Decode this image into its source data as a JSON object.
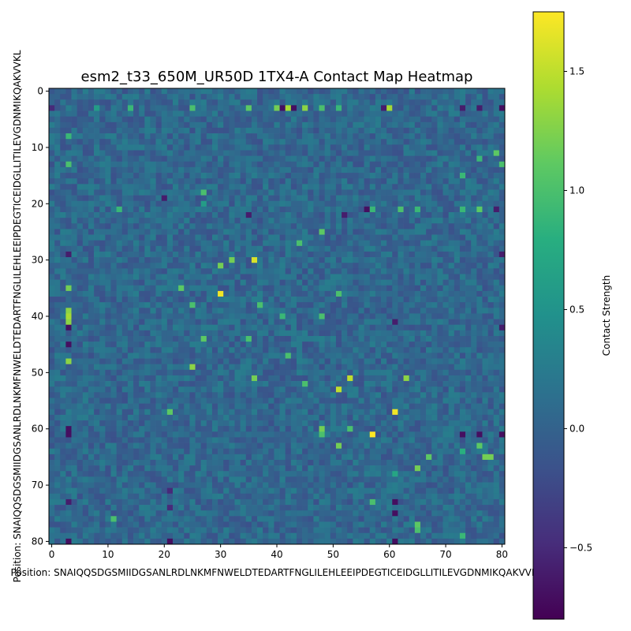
{
  "chart_data": {
    "type": "heatmap",
    "title": "esm2_t33_650M_UR50D 1TX4-A Contact Map Heatmap",
    "xlabel": "Position: SNAIQQSDGSMIIDGSANLRDLNKMFNWELDTEDARTFNGLILEHLEEIPDEGTICEIDGLLITILEVGDNMIKQAKVVKL",
    "ylabel": "Position: SNAIQQSDGSMIIDGSANLRDLNKMFNWELDTEDARTFNGLILEHLEEIPDEGTICEIDGLLITILEVGDNMIKQAKVVKL",
    "sequence": "SNAIQQSDGSMIIDGSANLRDLNKMFNWELDTEDARTFNGLILEHLEEIPDEGTICEIDGLLITILEVGDNMIKQAKVVKL",
    "n_positions": 81,
    "x_ticks": [
      "0",
      "10",
      "20",
      "30",
      "40",
      "50",
      "60",
      "70",
      "80"
    ],
    "y_ticks": [
      "0",
      "10",
      "20",
      "30",
      "40",
      "50",
      "60",
      "70",
      "80"
    ],
    "colormap": "viridis",
    "colorbar_label": "Contact Strength",
    "colorbar_ticks": [
      "1.5",
      "1.0",
      "0.5",
      "0.0",
      "−0.5"
    ],
    "value_range": [
      -0.8,
      1.75
    ],
    "background_mean": 0.05,
    "highlights": [
      {
        "i": 3,
        "j": 0,
        "v": -0.5
      },
      {
        "i": 3,
        "j": 8,
        "v": 0.6
      },
      {
        "i": 3,
        "j": 14,
        "v": 0.9
      },
      {
        "i": 3,
        "j": 35,
        "v": 1.1
      },
      {
        "i": 3,
        "j": 40,
        "v": 1.2
      },
      {
        "i": 3,
        "j": 41,
        "v": -0.7
      },
      {
        "i": 3,
        "j": 42,
        "v": 1.4
      },
      {
        "i": 3,
        "j": 43,
        "v": -0.7
      },
      {
        "i": 3,
        "j": 45,
        "v": 1.3
      },
      {
        "i": 3,
        "j": 48,
        "v": 1.0
      },
      {
        "i": 3,
        "j": 51,
        "v": 0.9
      },
      {
        "i": 3,
        "j": 59,
        "v": -0.6
      },
      {
        "i": 3,
        "j": 60,
        "v": 1.4
      },
      {
        "i": 3,
        "j": 80,
        "v": -0.7
      },
      {
        "i": 21,
        "j": 12,
        "v": 0.9
      },
      {
        "i": 21,
        "j": 57,
        "v": 0.9
      },
      {
        "i": 21,
        "j": 62,
        "v": 1.0
      },
      {
        "i": 21,
        "j": 65,
        "v": 0.9
      },
      {
        "i": 21,
        "j": 73,
        "v": 0.9
      },
      {
        "i": 21,
        "j": 76,
        "v": 1.1
      },
      {
        "i": 21,
        "j": 56,
        "v": -0.7
      },
      {
        "i": 21,
        "j": 79,
        "v": -0.6
      },
      {
        "i": 22,
        "j": 35,
        "v": -0.6
      },
      {
        "i": 30,
        "j": 32,
        "v": 1.2
      },
      {
        "i": 30,
        "j": 36,
        "v": 1.6
      },
      {
        "i": 31,
        "j": 30,
        "v": 1.2
      },
      {
        "i": 36,
        "j": 30,
        "v": 1.7
      },
      {
        "i": 35,
        "j": 23,
        "v": 1.1
      },
      {
        "i": 38,
        "j": 25,
        "v": 1.0
      },
      {
        "i": 38,
        "j": 37,
        "v": 1.0
      },
      {
        "i": 44,
        "j": 27,
        "v": 1.1
      },
      {
        "i": 44,
        "j": 35,
        "v": 1.0
      },
      {
        "i": 49,
        "j": 25,
        "v": 1.3
      },
      {
        "i": 51,
        "j": 36,
        "v": 1.2
      },
      {
        "i": 51,
        "j": 63,
        "v": 1.3
      },
      {
        "i": 52,
        "j": 45,
        "v": 1.0
      },
      {
        "i": 53,
        "j": 51,
        "v": 1.5
      },
      {
        "i": 51,
        "j": 53,
        "v": 1.5
      },
      {
        "i": 57,
        "j": 61,
        "v": 1.7
      },
      {
        "i": 61,
        "j": 57,
        "v": 1.75
      },
      {
        "i": 61,
        "j": 48,
        "v": 1.0
      },
      {
        "i": 61,
        "j": 73,
        "v": -0.7
      },
      {
        "i": 61,
        "j": 76,
        "v": -0.7
      },
      {
        "i": 61,
        "j": 80,
        "v": -0.7
      },
      {
        "i": 61,
        "j": 3,
        "v": -0.7
      },
      {
        "i": 63,
        "j": 51,
        "v": 1.2
      },
      {
        "i": 65,
        "j": 67,
        "v": 1.1
      },
      {
        "i": 65,
        "j": 77,
        "v": 1.2
      },
      {
        "i": 65,
        "j": 78,
        "v": 1.2
      },
      {
        "i": 67,
        "j": 65,
        "v": 1.2
      },
      {
        "i": 73,
        "j": 57,
        "v": 1.0
      },
      {
        "i": 73,
        "j": 61,
        "v": -0.7
      },
      {
        "i": 75,
        "j": 61,
        "v": -0.7
      },
      {
        "i": 77,
        "j": 65,
        "v": 1.1
      },
      {
        "i": 78,
        "j": 65,
        "v": 1.0
      },
      {
        "i": 79,
        "j": 73,
        "v": 0.9
      },
      {
        "i": 80,
        "j": 3,
        "v": -0.7
      },
      {
        "i": 80,
        "j": 21,
        "v": -0.7
      },
      {
        "i": 80,
        "j": 61,
        "v": -0.7
      },
      {
        "i": 42,
        "j": 3,
        "v": -0.7
      },
      {
        "i": 45,
        "j": 3,
        "v": -0.7
      },
      {
        "i": 29,
        "j": 3,
        "v": -0.6
      },
      {
        "i": 40,
        "j": 3,
        "v": 1.4
      },
      {
        "i": 39,
        "j": 3,
        "v": 1.3
      },
      {
        "i": 41,
        "j": 3,
        "v": 1.3
      },
      {
        "i": 48,
        "j": 3,
        "v": 1.3
      },
      {
        "i": 35,
        "j": 3,
        "v": 1.2
      },
      {
        "i": 13,
        "j": 3,
        "v": 1.0
      },
      {
        "i": 8,
        "j": 3,
        "v": 0.9
      },
      {
        "i": 3,
        "j": 25,
        "v": 1.0
      },
      {
        "i": 3,
        "j": 73,
        "v": -0.6
      },
      {
        "i": 3,
        "j": 76,
        "v": -0.6
      },
      {
        "i": 19,
        "j": 20,
        "v": -0.6
      },
      {
        "i": 20,
        "j": 27,
        "v": 0.6
      },
      {
        "i": 18,
        "j": 27,
        "v": 1.0
      },
      {
        "i": 27,
        "j": 44,
        "v": 1.0
      },
      {
        "i": 25,
        "j": 48,
        "v": 1.1
      },
      {
        "i": 36,
        "j": 51,
        "v": 1.0
      },
      {
        "i": 11,
        "j": 79,
        "v": 1.1
      },
      {
        "i": 12,
        "j": 76,
        "v": 0.9
      },
      {
        "i": 13,
        "j": 80,
        "v": 1.0
      },
      {
        "i": 15,
        "j": 73,
        "v": 0.9
      },
      {
        "i": 29,
        "j": 80,
        "v": -0.6
      },
      {
        "i": 42,
        "j": 80,
        "v": -0.6
      },
      {
        "i": 41,
        "j": 61,
        "v": -0.6
      },
      {
        "i": 40,
        "j": 41,
        "v": 0.9
      },
      {
        "i": 40,
        "j": 48,
        "v": 1.0
      },
      {
        "i": 47,
        "j": 42,
        "v": 1.0
      },
      {
        "i": 22,
        "j": 52,
        "v": -0.6
      },
      {
        "i": 57,
        "j": 21,
        "v": 1.1
      },
      {
        "i": 63,
        "j": 76,
        "v": 1.1
      },
      {
        "i": 64,
        "j": 73,
        "v": 0.8
      },
      {
        "i": 68,
        "j": 61,
        "v": 0.7
      },
      {
        "i": 71,
        "j": 21,
        "v": -0.5
      },
      {
        "i": 74,
        "j": 21,
        "v": -0.5
      },
      {
        "i": 76,
        "j": 11,
        "v": 1.0
      },
      {
        "i": 60,
        "j": 3,
        "v": -0.7
      },
      {
        "i": 73,
        "j": 3,
        "v": -0.6
      },
      {
        "i": 60,
        "j": 48,
        "v": 1.2
      },
      {
        "i": 60,
        "j": 53,
        "v": 1.0
      }
    ]
  }
}
